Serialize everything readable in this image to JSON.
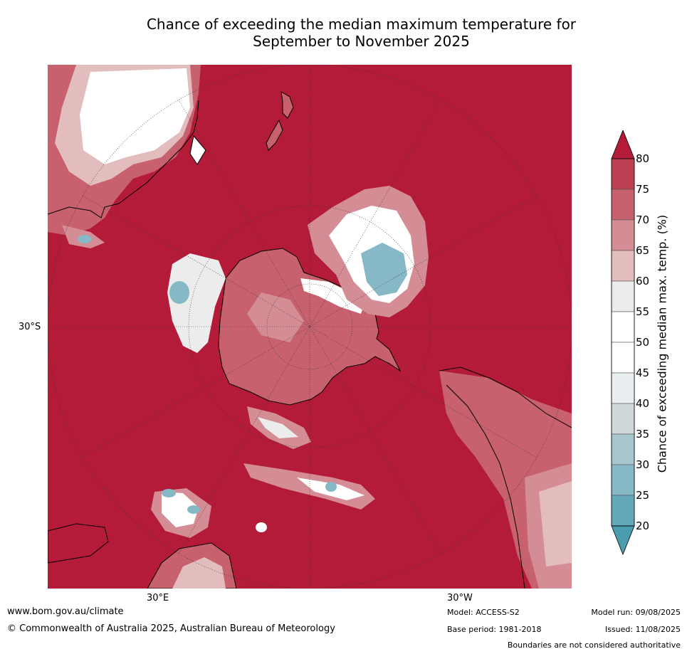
{
  "title": {
    "line1": "Chance of exceeding the median maximum temperature for",
    "line2": "September to November 2025"
  },
  "map": {
    "projection": "south polar stereographic",
    "ocean_color": "#b31b38",
    "graticule_labels": {
      "lat_left": "30°S",
      "lon_bottom_left": "30°E",
      "lon_bottom_right": "30°W"
    },
    "features": [
      "antarctica",
      "australia",
      "new-zealand",
      "south-america",
      "africa",
      "indian-ocean-cool-patches"
    ]
  },
  "colorbar": {
    "label": "Chance of exceeding median max. temp. (%)",
    "ticks": [
      "80",
      "75",
      "70",
      "65",
      "60",
      "55",
      "50",
      "45",
      "40",
      "35",
      "30",
      "25",
      "20"
    ],
    "colors": [
      "#b31b38",
      "#bc3f52",
      "#c7616e",
      "#d48d94",
      "#e3bcbe",
      "#ececec",
      "#ffffff",
      "#ffffff",
      "#e9eef1",
      "#d0d8dc",
      "#a8c6cd",
      "#86b8c5",
      "#63a9b9",
      "#4a9cae"
    ],
    "arrow_top_color": "#b31b38",
    "arrow_bottom_color": "#4a9cae"
  },
  "footer": {
    "url": "www.bom.gov.au/climate",
    "copyright": "© Commonwealth of Australia 2025, Australian Bureau of Meteorology",
    "model": "Model: ACCESS-S2",
    "base_period": "Base period: 1981-2018",
    "model_run": "Model run: 09/08/2025",
    "issued": "Issued: 11/08/2025",
    "disclaimer": "Boundaries are not considered authoritative"
  }
}
